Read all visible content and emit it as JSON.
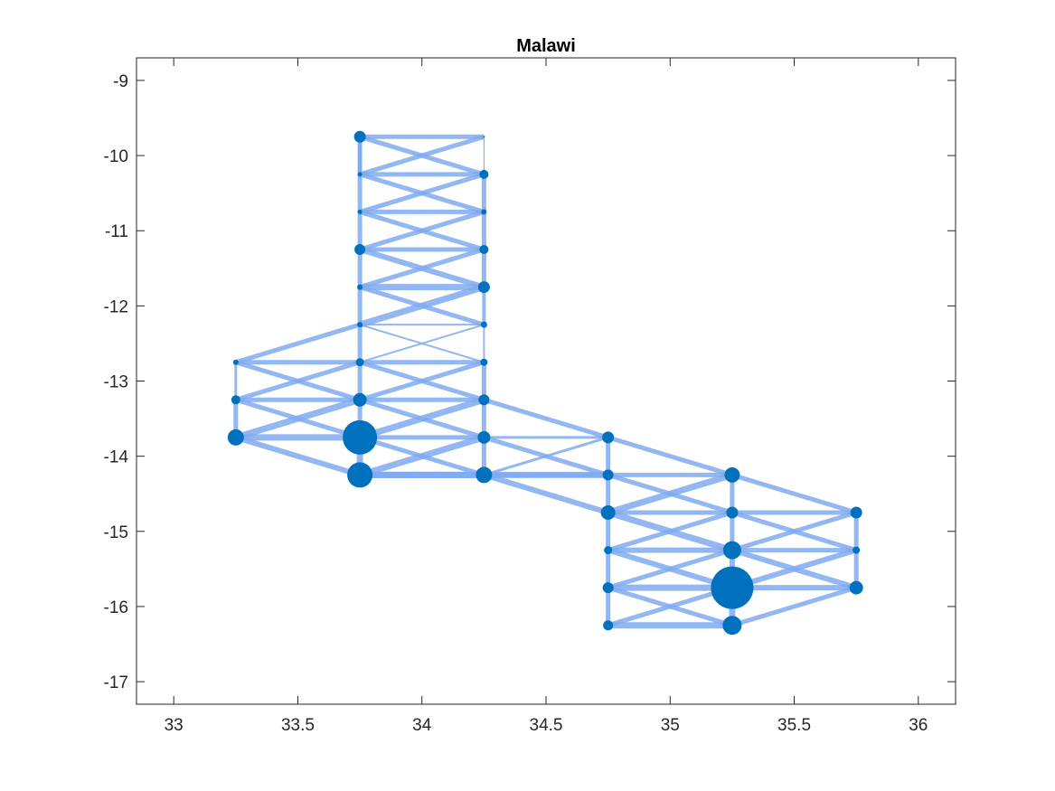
{
  "chart_data": {
    "type": "scatter",
    "title": "Malawi",
    "xlabel": "",
    "ylabel": "",
    "xlim": [
      32.85,
      36.15
    ],
    "ylim": [
      -17.3,
      -8.7
    ],
    "xticks": [
      33,
      33.5,
      34,
      34.5,
      35,
      35.5,
      36
    ],
    "yticks": [
      -17,
      -16,
      -15,
      -14,
      -13,
      -12,
      -11,
      -10,
      -9
    ],
    "xtick_labels": [
      "33",
      "33.5",
      "34",
      "34.5",
      "35",
      "35.5",
      "36"
    ],
    "ytick_labels": [
      "-17",
      "-16",
      "-15",
      "-14",
      "-13",
      "-12",
      "-11",
      "-10",
      "-9"
    ],
    "grid": false,
    "box": true,
    "colors": {
      "node": "#0072BD",
      "edge": "#7FAAF0",
      "axis": "#262626"
    },
    "nodes": [
      {
        "x": 33.75,
        "y": -9.75,
        "size": 13
      },
      {
        "x": 34.25,
        "y": -9.75,
        "size": 2
      },
      {
        "x": 33.75,
        "y": -10.25,
        "size": 5
      },
      {
        "x": 34.25,
        "y": -10.25,
        "size": 10
      },
      {
        "x": 33.75,
        "y": -10.75,
        "size": 5
      },
      {
        "x": 34.25,
        "y": -10.75,
        "size": 6
      },
      {
        "x": 33.75,
        "y": -11.25,
        "size": 12
      },
      {
        "x": 34.25,
        "y": -11.25,
        "size": 10
      },
      {
        "x": 33.75,
        "y": -11.75,
        "size": 6
      },
      {
        "x": 34.25,
        "y": -11.75,
        "size": 13
      },
      {
        "x": 33.75,
        "y": -12.25,
        "size": 6
      },
      {
        "x": 34.25,
        "y": -12.25,
        "size": 7
      },
      {
        "x": 33.25,
        "y": -12.75,
        "size": 6
      },
      {
        "x": 33.75,
        "y": -12.75,
        "size": 9
      },
      {
        "x": 34.25,
        "y": -12.75,
        "size": 8
      },
      {
        "x": 33.25,
        "y": -13.25,
        "size": 10
      },
      {
        "x": 33.75,
        "y": -13.25,
        "size": 15
      },
      {
        "x": 34.25,
        "y": -13.25,
        "size": 12
      },
      {
        "x": 33.25,
        "y": -13.75,
        "size": 18
      },
      {
        "x": 33.75,
        "y": -13.75,
        "size": 38
      },
      {
        "x": 34.25,
        "y": -13.75,
        "size": 14
      },
      {
        "x": 34.75,
        "y": -13.75,
        "size": 13
      },
      {
        "x": 33.75,
        "y": -14.25,
        "size": 28
      },
      {
        "x": 34.25,
        "y": -14.25,
        "size": 18
      },
      {
        "x": 34.75,
        "y": -14.25,
        "size": 12
      },
      {
        "x": 35.25,
        "y": -14.25,
        "size": 17
      },
      {
        "x": 34.75,
        "y": -14.75,
        "size": 16
      },
      {
        "x": 35.25,
        "y": -14.75,
        "size": 13
      },
      {
        "x": 35.75,
        "y": -14.75,
        "size": 13
      },
      {
        "x": 34.75,
        "y": -15.25,
        "size": 9
      },
      {
        "x": 35.25,
        "y": -15.25,
        "size": 20
      },
      {
        "x": 35.75,
        "y": -15.25,
        "size": 8
      },
      {
        "x": 34.75,
        "y": -15.75,
        "size": 12
      },
      {
        "x": 35.25,
        "y": -15.75,
        "size": 47
      },
      {
        "x": 35.75,
        "y": -15.75,
        "size": 15
      },
      {
        "x": 34.75,
        "y": -16.25,
        "size": 11
      },
      {
        "x": 35.25,
        "y": -16.25,
        "size": 21
      }
    ],
    "edges": [
      [
        0,
        1,
        5
      ],
      [
        0,
        2,
        5
      ],
      [
        0,
        3,
        5
      ],
      [
        1,
        2,
        5
      ],
      [
        1,
        3,
        1
      ],
      [
        2,
        3,
        5
      ],
      [
        2,
        4,
        5
      ],
      [
        2,
        5,
        5
      ],
      [
        3,
        4,
        5
      ],
      [
        3,
        5,
        5
      ],
      [
        4,
        5,
        5
      ],
      [
        4,
        6,
        5
      ],
      [
        4,
        7,
        5
      ],
      [
        5,
        6,
        5
      ],
      [
        5,
        7,
        5
      ],
      [
        6,
        7,
        5
      ],
      [
        6,
        8,
        5
      ],
      [
        6,
        9,
        6
      ],
      [
        7,
        8,
        5
      ],
      [
        7,
        9,
        5
      ],
      [
        8,
        9,
        7
      ],
      [
        8,
        10,
        5
      ],
      [
        8,
        11,
        5
      ],
      [
        9,
        10,
        7
      ],
      [
        9,
        11,
        4
      ],
      [
        10,
        11,
        2
      ],
      [
        10,
        13,
        5
      ],
      [
        10,
        14,
        2
      ],
      [
        11,
        13,
        2
      ],
      [
        11,
        14,
        2
      ],
      [
        10,
        12,
        5
      ],
      [
        12,
        13,
        5
      ],
      [
        12,
        16,
        5
      ],
      [
        12,
        15,
        3
      ],
      [
        13,
        14,
        5
      ],
      [
        13,
        15,
        5
      ],
      [
        13,
        17,
        5
      ],
      [
        14,
        16,
        5
      ],
      [
        14,
        17,
        5
      ],
      [
        13,
        16,
        5
      ],
      [
        15,
        16,
        5
      ],
      [
        15,
        18,
        5
      ],
      [
        15,
        19,
        5
      ],
      [
        16,
        17,
        5
      ],
      [
        16,
        18,
        7
      ],
      [
        16,
        19,
        5
      ],
      [
        16,
        20,
        5
      ],
      [
        17,
        19,
        7
      ],
      [
        17,
        20,
        5
      ],
      [
        17,
        21,
        5
      ],
      [
        18,
        19,
        7
      ],
      [
        18,
        22,
        6
      ],
      [
        19,
        20,
        5
      ],
      [
        19,
        22,
        7
      ],
      [
        19,
        23,
        5
      ],
      [
        20,
        21,
        3
      ],
      [
        20,
        22,
        7
      ],
      [
        20,
        23,
        5
      ],
      [
        20,
        24,
        5
      ],
      [
        21,
        23,
        3
      ],
      [
        21,
        24,
        5
      ],
      [
        21,
        25,
        5
      ],
      [
        22,
        23,
        7
      ],
      [
        22,
        24,
        7
      ],
      [
        23,
        24,
        5
      ],
      [
        23,
        26,
        6
      ],
      [
        24,
        25,
        5
      ],
      [
        24,
        26,
        5
      ],
      [
        24,
        27,
        5
      ],
      [
        25,
        26,
        7
      ],
      [
        25,
        27,
        5
      ],
      [
        25,
        28,
        5
      ],
      [
        26,
        27,
        5
      ],
      [
        26,
        29,
        5
      ],
      [
        26,
        30,
        7
      ],
      [
        27,
        28,
        5
      ],
      [
        27,
        29,
        5
      ],
      [
        27,
        30,
        5
      ],
      [
        27,
        31,
        5
      ],
      [
        28,
        30,
        5
      ],
      [
        28,
        31,
        5
      ],
      [
        29,
        30,
        6
      ],
      [
        29,
        32,
        5
      ],
      [
        29,
        33,
        6
      ],
      [
        30,
        31,
        5
      ],
      [
        30,
        32,
        5
      ],
      [
        30,
        33,
        6
      ],
      [
        30,
        34,
        6
      ],
      [
        31,
        33,
        6
      ],
      [
        31,
        34,
        5
      ],
      [
        32,
        33,
        7
      ],
      [
        32,
        35,
        5
      ],
      [
        32,
        36,
        5
      ],
      [
        33,
        34,
        6
      ],
      [
        33,
        35,
        5
      ],
      [
        33,
        36,
        7
      ],
      [
        34,
        36,
        5
      ],
      [
        35,
        36,
        7
      ],
      [
        0,
        2,
        4
      ],
      [
        1,
        3,
        1
      ]
    ]
  }
}
